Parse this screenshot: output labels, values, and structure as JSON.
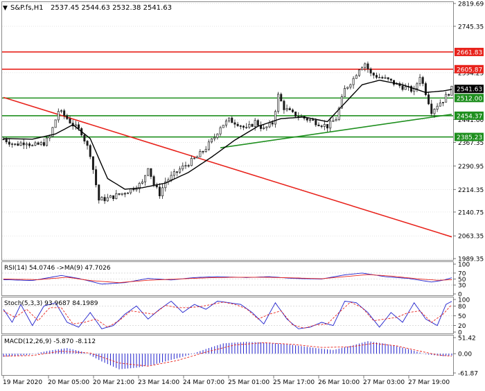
{
  "header": {
    "symbol": "S&P.fs,H1",
    "ohlc": "2537.45 2544.63 2532.38 2541.63"
  },
  "colors": {
    "bull": "#1a1a1a",
    "bear": "#1a1a1a",
    "ma": "#000000",
    "red_line": "#e8231c",
    "green_line": "#1e8f1e",
    "price_tag_current": "#000000",
    "grid": "#c8c8c8",
    "rsi_line": "#1f1fcc",
    "rsi_ma": "#e8231c",
    "stoch_main": "#1f1fcc",
    "stoch_signal": "#e8231c",
    "macd_hist": "#1f1fcc",
    "macd_signal": "#e8231c"
  },
  "chart_data": [
    {
      "type": "candlestick",
      "name": "price",
      "ylim": [
        1989.35,
        2819.69
      ],
      "y_ticks": [
        {
          "value": 2819.69,
          "label": "2819.69"
        },
        {
          "value": 2745.35,
          "label": "2745.35"
        },
        {
          "value": 2594.25,
          "label": "2594.25"
        },
        {
          "value": 2441.6,
          "label": "2441.60"
        },
        {
          "value": 2367.35,
          "label": "2367.35"
        },
        {
          "value": 2290.95,
          "label": "2290.95"
        },
        {
          "value": 2214.35,
          "label": "2214.35"
        },
        {
          "value": 2140.75,
          "label": "2140.75"
        },
        {
          "value": 2063.35,
          "label": "2063.35"
        },
        {
          "value": 1989.35,
          "label": "1989.35"
        }
      ],
      "price_tags": [
        {
          "value": 2661.83,
          "label": "2661.83",
          "kind": "red"
        },
        {
          "value": 2605.87,
          "label": "2605.87",
          "kind": "red"
        },
        {
          "value": 2541.63,
          "label": "2541.63",
          "kind": "current"
        },
        {
          "value": 2512.0,
          "label": "2512.00",
          "kind": "green"
        },
        {
          "value": 2454.37,
          "label": "2454.37",
          "kind": "green"
        },
        {
          "value": 2385.23,
          "label": "2385.23",
          "kind": "green"
        }
      ],
      "x_labels": [
        "19 Mar 2020",
        "20 Mar 05:00",
        "20 Mar 21:00",
        "23 Mar 14:00",
        "24 Mar 07:00",
        "25 Mar 01:00",
        "25 Mar 17:00",
        "26 Mar 10:00",
        "27 Mar 03:00",
        "27 Mar 19:00"
      ],
      "trendlines": [
        {
          "kind": "red",
          "from": [
            0,
            2514
          ],
          "to": [
            155,
            2060
          ]
        },
        {
          "kind": "green",
          "from": [
            75,
            2350
          ],
          "to": [
            155,
            2459
          ]
        }
      ],
      "close_anchors": [
        [
          0,
          2378
        ],
        [
          4,
          2360
        ],
        [
          8,
          2370
        ],
        [
          10,
          2355
        ],
        [
          14,
          2365
        ],
        [
          16,
          2385
        ],
        [
          19,
          2470
        ],
        [
          21,
          2455
        ],
        [
          24,
          2425
        ],
        [
          27,
          2400
        ],
        [
          30,
          2330
        ],
        [
          33,
          2180
        ],
        [
          36,
          2185
        ],
        [
          39,
          2195
        ],
        [
          42,
          2205
        ],
        [
          45,
          2220
        ],
        [
          48,
          2235
        ],
        [
          50,
          2290
        ],
        [
          52,
          2230
        ],
        [
          54,
          2200
        ],
        [
          56,
          2240
        ],
        [
          58,
          2255
        ],
        [
          61,
          2280
        ],
        [
          64,
          2300
        ],
        [
          67,
          2320
        ],
        [
          70,
          2350
        ],
        [
          73,
          2385
        ],
        [
          75,
          2420
        ],
        [
          78,
          2440
        ],
        [
          81,
          2430
        ],
        [
          84,
          2410
        ],
        [
          87,
          2435
        ],
        [
          90,
          2410
        ],
        [
          93,
          2430
        ],
        [
          95,
          2520
        ],
        [
          97,
          2480
        ],
        [
          100,
          2460
        ],
        [
          103,
          2450
        ],
        [
          106,
          2440
        ],
        [
          109,
          2430
        ],
        [
          112,
          2420
        ],
        [
          115,
          2445
        ],
        [
          118,
          2540
        ],
        [
          121,
          2575
        ],
        [
          123,
          2610
        ],
        [
          125,
          2625
        ],
        [
          127,
          2590
        ],
        [
          130,
          2580
        ],
        [
          133,
          2570
        ],
        [
          136,
          2555
        ],
        [
          139,
          2545
        ],
        [
          142,
          2535
        ],
        [
          144,
          2585
        ],
        [
          146,
          2530
        ],
        [
          148,
          2470
        ],
        [
          150,
          2490
        ],
        [
          152,
          2505
        ],
        [
          155,
          2541.63
        ]
      ],
      "ma_anchors": [
        [
          0,
          2380
        ],
        [
          10,
          2378
        ],
        [
          18,
          2395
        ],
        [
          24,
          2425
        ],
        [
          30,
          2380
        ],
        [
          36,
          2250
        ],
        [
          42,
          2215
        ],
        [
          48,
          2220
        ],
        [
          56,
          2235
        ],
        [
          64,
          2270
        ],
        [
          72,
          2320
        ],
        [
          80,
          2375
        ],
        [
          88,
          2420
        ],
        [
          96,
          2445
        ],
        [
          104,
          2450
        ],
        [
          112,
          2435
        ],
        [
          118,
          2495
        ],
        [
          124,
          2555
        ],
        [
          130,
          2570
        ],
        [
          138,
          2555
        ],
        [
          146,
          2530
        ],
        [
          152,
          2535
        ],
        [
          155,
          2540
        ]
      ],
      "candle_count": 156
    },
    {
      "type": "line",
      "name": "rsi",
      "label": "RSI(14) 54.0746  ->MA(9) 47.7026",
      "ylim": [
        0,
        100
      ],
      "y_ticks": [
        {
          "value": 100,
          "label": "100"
        },
        {
          "value": 70,
          "label": "70"
        },
        {
          "value": 50,
          "label": "50"
        },
        {
          "value": 30,
          "label": "30"
        },
        {
          "value": 0,
          "label": "0"
        }
      ],
      "levels": [
        70,
        50,
        30
      ],
      "series_anchors": [
        [
          0,
          48
        ],
        [
          10,
          45
        ],
        [
          20,
          62
        ],
        [
          26,
          52
        ],
        [
          34,
          33
        ],
        [
          42,
          38
        ],
        [
          50,
          52
        ],
        [
          58,
          47
        ],
        [
          66,
          55
        ],
        [
          74,
          58
        ],
        [
          84,
          55
        ],
        [
          92,
          58
        ],
        [
          100,
          52
        ],
        [
          110,
          50
        ],
        [
          118,
          64
        ],
        [
          124,
          70
        ],
        [
          132,
          58
        ],
        [
          140,
          52
        ],
        [
          148,
          40
        ],
        [
          152,
          46
        ],
        [
          155,
          54.07
        ]
      ],
      "signal_anchors": [
        [
          0,
          50
        ],
        [
          12,
          48
        ],
        [
          22,
          56
        ],
        [
          30,
          45
        ],
        [
          40,
          38
        ],
        [
          50,
          46
        ],
        [
          60,
          50
        ],
        [
          70,
          54
        ],
        [
          80,
          56
        ],
        [
          90,
          56
        ],
        [
          100,
          54
        ],
        [
          110,
          51
        ],
        [
          118,
          58
        ],
        [
          126,
          65
        ],
        [
          134,
          60
        ],
        [
          144,
          50
        ],
        [
          150,
          46
        ],
        [
          155,
          47.7
        ]
      ]
    },
    {
      "type": "line",
      "name": "stochastic",
      "label": "Stoch(5,3,3) 93.9687 84.1989",
      "ylim": [
        0,
        100
      ],
      "y_ticks": [
        {
          "value": 100,
          "label": "100"
        },
        {
          "value": 80,
          "label": "80"
        },
        {
          "value": 50,
          "label": "50"
        },
        {
          "value": 20,
          "label": "20"
        },
        {
          "value": 0,
          "label": "0"
        }
      ],
      "levels": [
        80,
        50,
        20
      ],
      "series_anchors": [
        [
          0,
          70
        ],
        [
          3,
          30
        ],
        [
          6,
          85
        ],
        [
          10,
          20
        ],
        [
          14,
          80
        ],
        [
          18,
          90
        ],
        [
          22,
          30
        ],
        [
          26,
          15
        ],
        [
          30,
          60
        ],
        [
          34,
          10
        ],
        [
          38,
          20
        ],
        [
          42,
          55
        ],
        [
          46,
          80
        ],
        [
          50,
          40
        ],
        [
          54,
          70
        ],
        [
          58,
          95
        ],
        [
          62,
          60
        ],
        [
          66,
          85
        ],
        [
          70,
          70
        ],
        [
          74,
          95
        ],
        [
          78,
          90
        ],
        [
          82,
          85
        ],
        [
          86,
          60
        ],
        [
          90,
          25
        ],
        [
          94,
          90
        ],
        [
          98,
          40
        ],
        [
          102,
          10
        ],
        [
          106,
          15
        ],
        [
          110,
          30
        ],
        [
          114,
          20
        ],
        [
          118,
          95
        ],
        [
          122,
          90
        ],
        [
          126,
          60
        ],
        [
          130,
          15
        ],
        [
          134,
          60
        ],
        [
          138,
          30
        ],
        [
          142,
          90
        ],
        [
          146,
          40
        ],
        [
          150,
          20
        ],
        [
          153,
          85
        ],
        [
          155,
          93.97
        ]
      ],
      "signal_anchors": [
        [
          0,
          65
        ],
        [
          4,
          45
        ],
        [
          8,
          70
        ],
        [
          12,
          35
        ],
        [
          16,
          75
        ],
        [
          20,
          75
        ],
        [
          24,
          25
        ],
        [
          28,
          30
        ],
        [
          32,
          40
        ],
        [
          36,
          15
        ],
        [
          40,
          35
        ],
        [
          44,
          65
        ],
        [
          48,
          60
        ],
        [
          52,
          55
        ],
        [
          56,
          82
        ],
        [
          60,
          75
        ],
        [
          64,
          75
        ],
        [
          68,
          78
        ],
        [
          72,
          85
        ],
        [
          76,
          92
        ],
        [
          80,
          85
        ],
        [
          84,
          72
        ],
        [
          88,
          40
        ],
        [
          92,
          55
        ],
        [
          96,
          65
        ],
        [
          100,
          22
        ],
        [
          104,
          12
        ],
        [
          108,
          22
        ],
        [
          112,
          25
        ],
        [
          116,
          60
        ],
        [
          120,
          92
        ],
        [
          124,
          75
        ],
        [
          128,
          35
        ],
        [
          132,
          40
        ],
        [
          136,
          45
        ],
        [
          140,
          60
        ],
        [
          144,
          65
        ],
        [
          148,
          30
        ],
        [
          152,
          55
        ],
        [
          155,
          84.2
        ]
      ]
    },
    {
      "type": "bar",
      "name": "macd",
      "label": "MACD(12,26,9) -5.870 -8.112",
      "ylim": [
        -61.87,
        51.42
      ],
      "y_ticks": [
        {
          "value": 51.42,
          "label": "51.42"
        },
        {
          "value": 0.0,
          "label": "0.00"
        },
        {
          "value": -61.87,
          "label": "-61.87"
        }
      ],
      "hist_anchors": [
        [
          0,
          -10
        ],
        [
          8,
          -5
        ],
        [
          16,
          10
        ],
        [
          22,
          18
        ],
        [
          28,
          5
        ],
        [
          34,
          -25
        ],
        [
          40,
          -50
        ],
        [
          46,
          -45
        ],
        [
          52,
          -35
        ],
        [
          58,
          -20
        ],
        [
          64,
          -5
        ],
        [
          70,
          15
        ],
        [
          76,
          33
        ],
        [
          84,
          38
        ],
        [
          92,
          35
        ],
        [
          100,
          28
        ],
        [
          108,
          18
        ],
        [
          114,
          12
        ],
        [
          120,
          25
        ],
        [
          126,
          40
        ],
        [
          132,
          32
        ],
        [
          140,
          15
        ],
        [
          146,
          -2
        ],
        [
          152,
          -8
        ],
        [
          155,
          -5.87
        ]
      ],
      "signal_anchors": [
        [
          0,
          -8
        ],
        [
          10,
          -6
        ],
        [
          20,
          8
        ],
        [
          30,
          2
        ],
        [
          40,
          -30
        ],
        [
          50,
          -40
        ],
        [
          60,
          -22
        ],
        [
          70,
          5
        ],
        [
          80,
          28
        ],
        [
          90,
          35
        ],
        [
          100,
          30
        ],
        [
          110,
          20
        ],
        [
          120,
          22
        ],
        [
          128,
          33
        ],
        [
          136,
          25
        ],
        [
          144,
          8
        ],
        [
          150,
          -4
        ],
        [
          155,
          -8.11
        ]
      ]
    }
  ]
}
